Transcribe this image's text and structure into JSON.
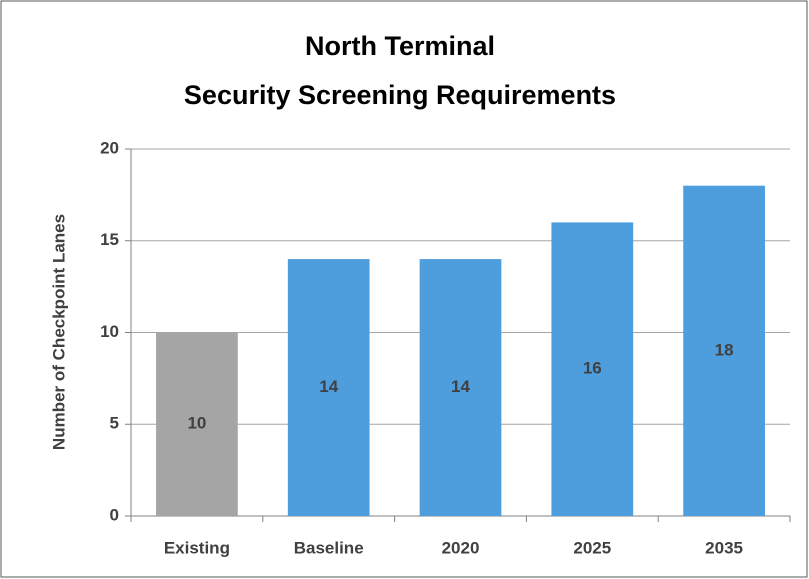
{
  "chart_data": {
    "type": "bar",
    "title": [
      "North Terminal",
      "Security Screening Requirements"
    ],
    "y_label": "Number of Checkpoint Lanes",
    "categories": [
      "Existing",
      "Baseline",
      "2020",
      "2025",
      "2035"
    ],
    "values": [
      10,
      14,
      14,
      16,
      18
    ],
    "colors": [
      "#a5a5a5",
      "#4e9ddd",
      "#4e9ddd",
      "#4e9ddd",
      "#4e9ddd"
    ],
    "ylim": [
      0,
      20
    ],
    "yticks": [
      0,
      5,
      10,
      15,
      20
    ],
    "grid": true
  }
}
